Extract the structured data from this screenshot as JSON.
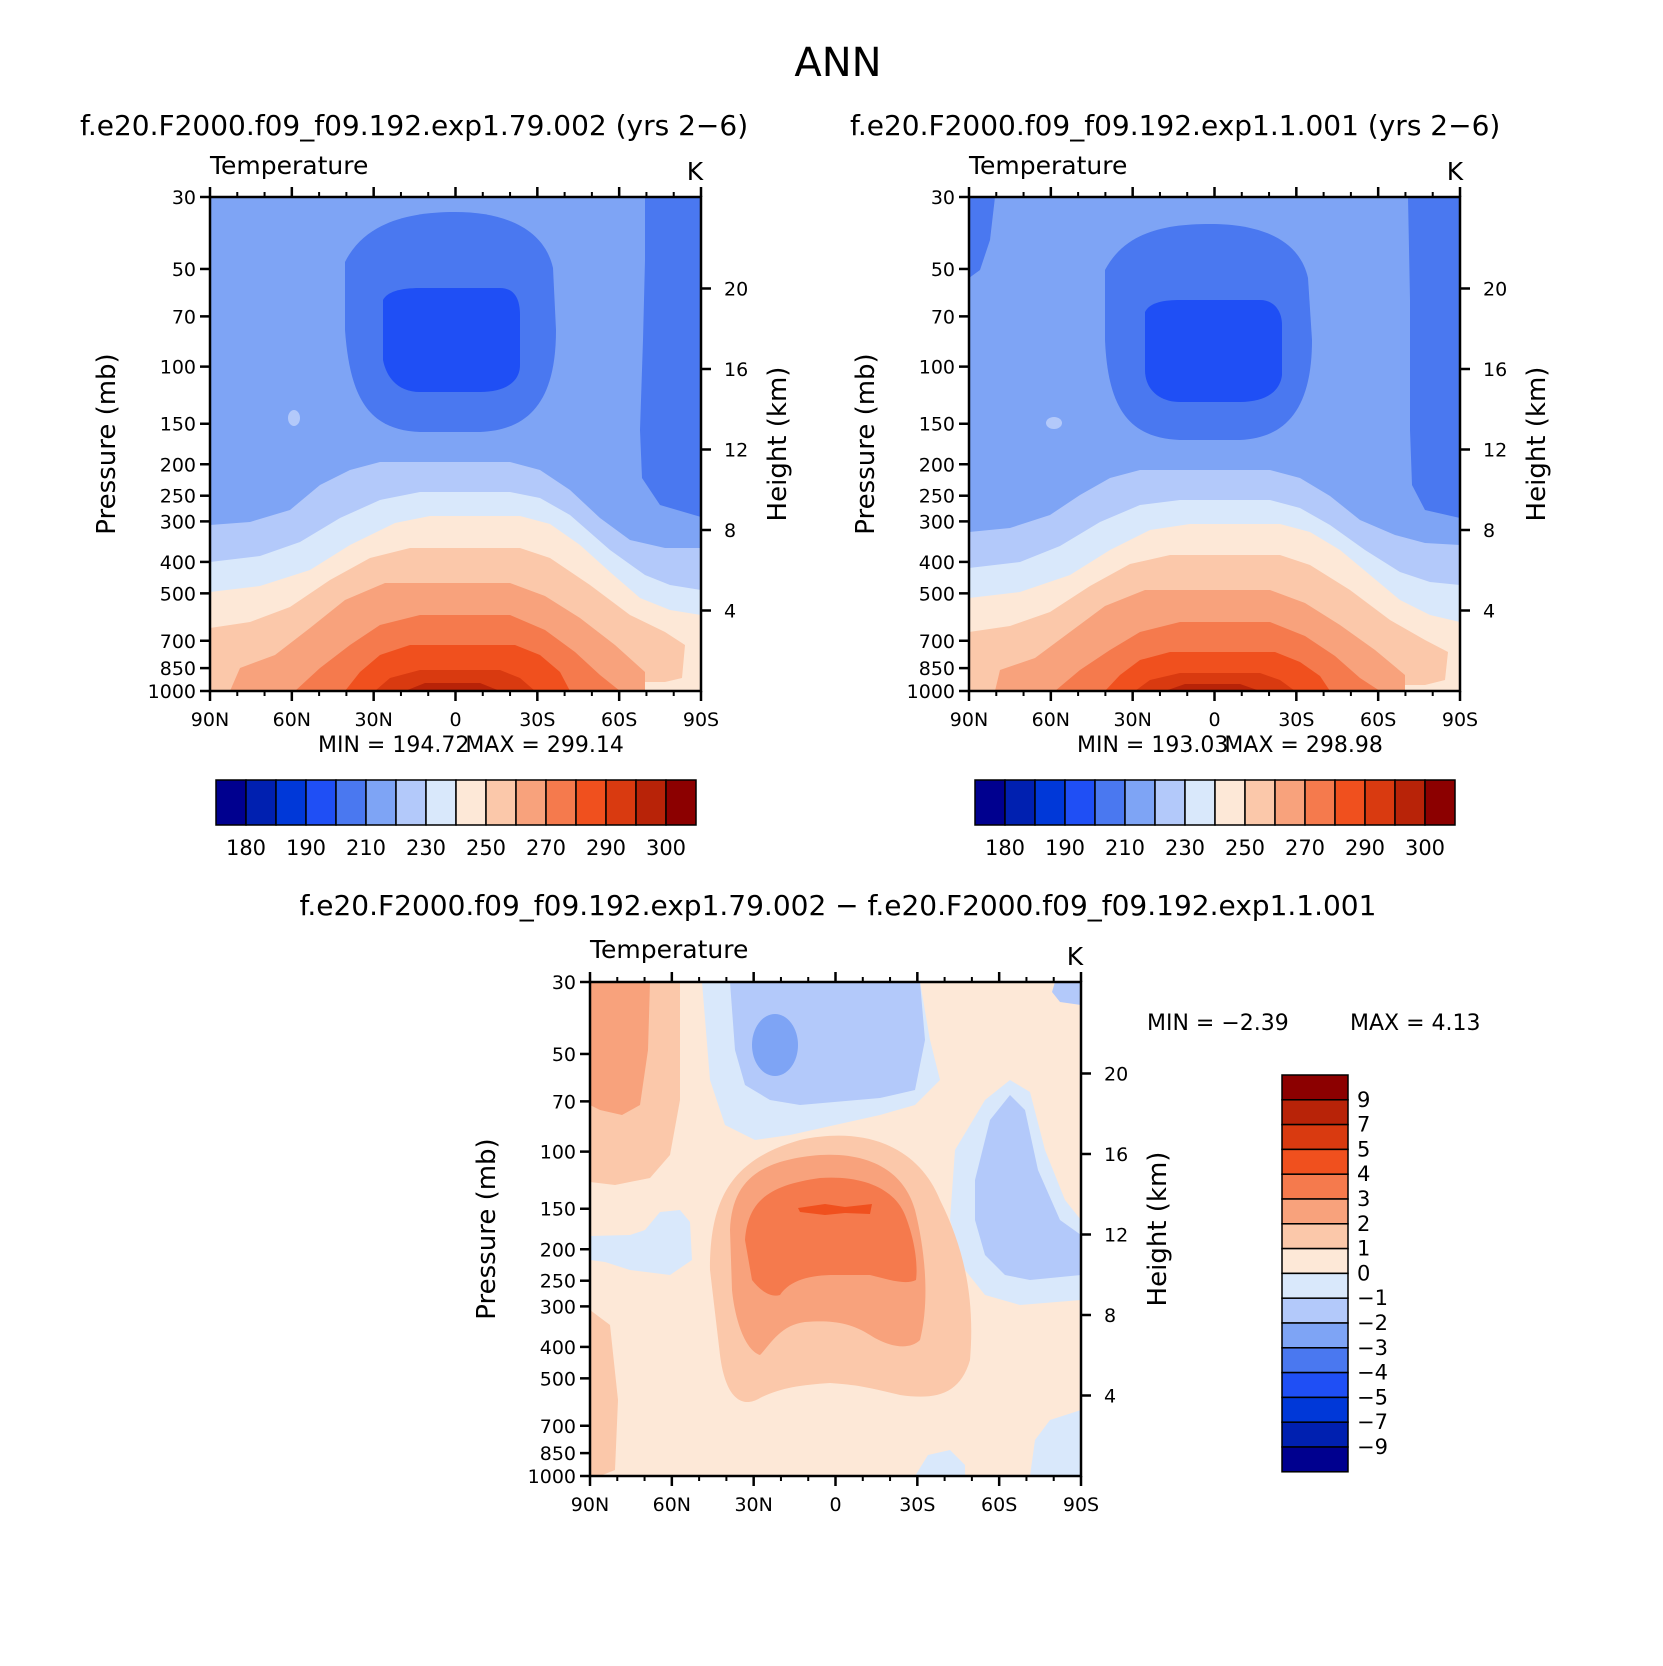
{
  "title": "ANN",
  "colors": {
    "palette": [
      "#00008f",
      "#0020b0",
      "#0038d8",
      "#1f4ff5",
      "#4a78f0",
      "#7ea4f5",
      "#b3c9fa",
      "#d9e8fb",
      "#fde8d7",
      "#fbc8aa",
      "#f8a27c",
      "#f57a4d",
      "#f0501e",
      "#d93a10",
      "#b82308",
      "#8c0000"
    ],
    "diff_palette": [
      "#00008f",
      "#0020b0",
      "#0038d8",
      "#1f4ff5",
      "#4a78f0",
      "#7ea4f5",
      "#b3c9fa",
      "#d9e8fb",
      "#fde8d7",
      "#fbc8aa",
      "#f8a27c",
      "#f57a4d",
      "#f0501e",
      "#d93a10",
      "#b82308",
      "#8c0000"
    ]
  },
  "chart_data": [
    {
      "type": "contour",
      "panel_title": "f.e20.F2000.f09_f09.192.exp1.79.002 (yrs 2−6)",
      "field_label": "Temperature",
      "units": "K",
      "ylabel": "Pressure (mb)",
      "y2label": "Height (km)",
      "x_ticks": [
        "90N",
        "60N",
        "30N",
        "0",
        "30S",
        "60S",
        "90S"
      ],
      "y_ticks": [
        "30",
        "50",
        "70",
        "100",
        "150",
        "200",
        "250",
        "300",
        "400",
        "500",
        "700",
        "850",
        "1000"
      ],
      "y2_ticks": [
        "20",
        "16",
        "12",
        "8",
        "4"
      ],
      "min": "MIN = 194.72",
      "max": "MAX = 299.14",
      "colorbar_labels": [
        "180",
        "190",
        "210",
        "230",
        "250",
        "270",
        "290",
        "300"
      ]
    },
    {
      "type": "contour",
      "panel_title": "f.e20.F2000.f09_f09.192.exp1.1.001 (yrs 2−6)",
      "field_label": "Temperature",
      "units": "K",
      "ylabel": "Pressure (mb)",
      "y2label": "Height (km)",
      "x_ticks": [
        "90N",
        "60N",
        "30N",
        "0",
        "30S",
        "60S",
        "90S"
      ],
      "y_ticks": [
        "30",
        "50",
        "70",
        "100",
        "150",
        "200",
        "250",
        "300",
        "400",
        "500",
        "700",
        "850",
        "1000"
      ],
      "y2_ticks": [
        "20",
        "16",
        "12",
        "8",
        "4"
      ],
      "min": "MIN = 193.03",
      "max": "MAX = 298.98",
      "colorbar_labels": [
        "180",
        "190",
        "210",
        "230",
        "250",
        "270",
        "290",
        "300"
      ]
    },
    {
      "type": "contour",
      "panel_title": "f.e20.F2000.f09_f09.192.exp1.79.002 − f.e20.F2000.f09_f09.192.exp1.1.001",
      "field_label": "Temperature",
      "units": "K",
      "ylabel": "Pressure (mb)",
      "y2label": "Height (km)",
      "x_ticks": [
        "90N",
        "60N",
        "30N",
        "0",
        "30S",
        "60S",
        "90S"
      ],
      "y_ticks": [
        "30",
        "50",
        "70",
        "100",
        "150",
        "200",
        "250",
        "300",
        "400",
        "500",
        "700",
        "850",
        "1000"
      ],
      "y2_ticks": [
        "20",
        "16",
        "12",
        "8",
        "4"
      ],
      "min": "MIN =   −2.39",
      "max": "MAX =    4.13",
      "colorbar_labels": [
        "9",
        "7",
        "5",
        "4",
        "3",
        "2",
        "1",
        "0",
        "−1",
        "−2",
        "−3",
        "−4",
        "−5",
        "−7",
        "−9"
      ]
    }
  ]
}
